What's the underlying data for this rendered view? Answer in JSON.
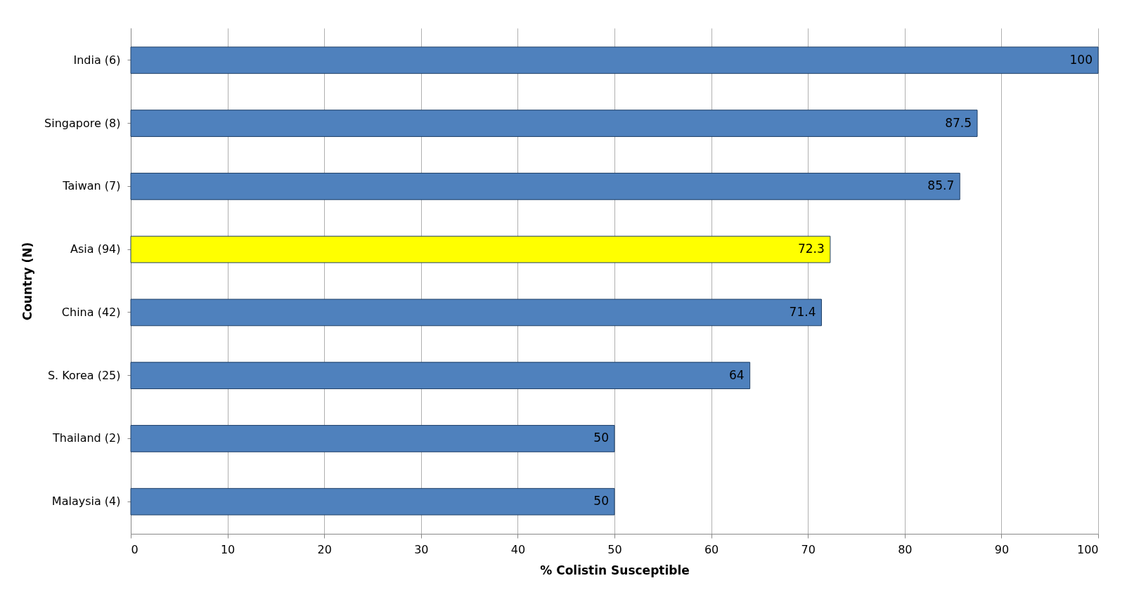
{
  "chart_data": {
    "type": "bar",
    "orientation": "horizontal",
    "xlabel": "% Colistin Susceptible",
    "ylabel": "Country (N)",
    "categories": [
      "India (6)",
      "Singapore (8)",
      "Taiwan (7)",
      "Asia (94)",
      "China (42)",
      "S. Korea (25)",
      "Thailand (2)",
      "Malaysia (4)"
    ],
    "values": [
      100,
      87.5,
      85.7,
      72.3,
      71.4,
      64,
      50,
      50
    ],
    "colors": [
      "#4f81bd",
      "#4f81bd",
      "#4f81bd",
      "#ffff00",
      "#4f81bd",
      "#4f81bd",
      "#4f81bd",
      "#4f81bd"
    ],
    "xlim": [
      0,
      100
    ],
    "xticks": [
      0,
      10,
      20,
      30,
      40,
      50,
      60,
      70,
      80,
      90,
      100
    ],
    "grid": "x",
    "data_labels": true
  }
}
